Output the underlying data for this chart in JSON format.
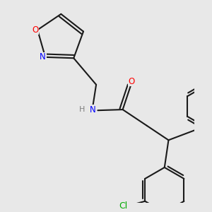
{
  "bg_color": "#e8e8e8",
  "bond_color": "#1a1a1a",
  "bond_width": 1.5,
  "atom_colors": {
    "O": "#ff0000",
    "N": "#0000ff",
    "Cl": "#00aa00",
    "C": "#1a1a1a",
    "H": "#808080"
  },
  "font_size": 8.5,
  "figsize": [
    3.0,
    3.0
  ],
  "dpi": 100
}
